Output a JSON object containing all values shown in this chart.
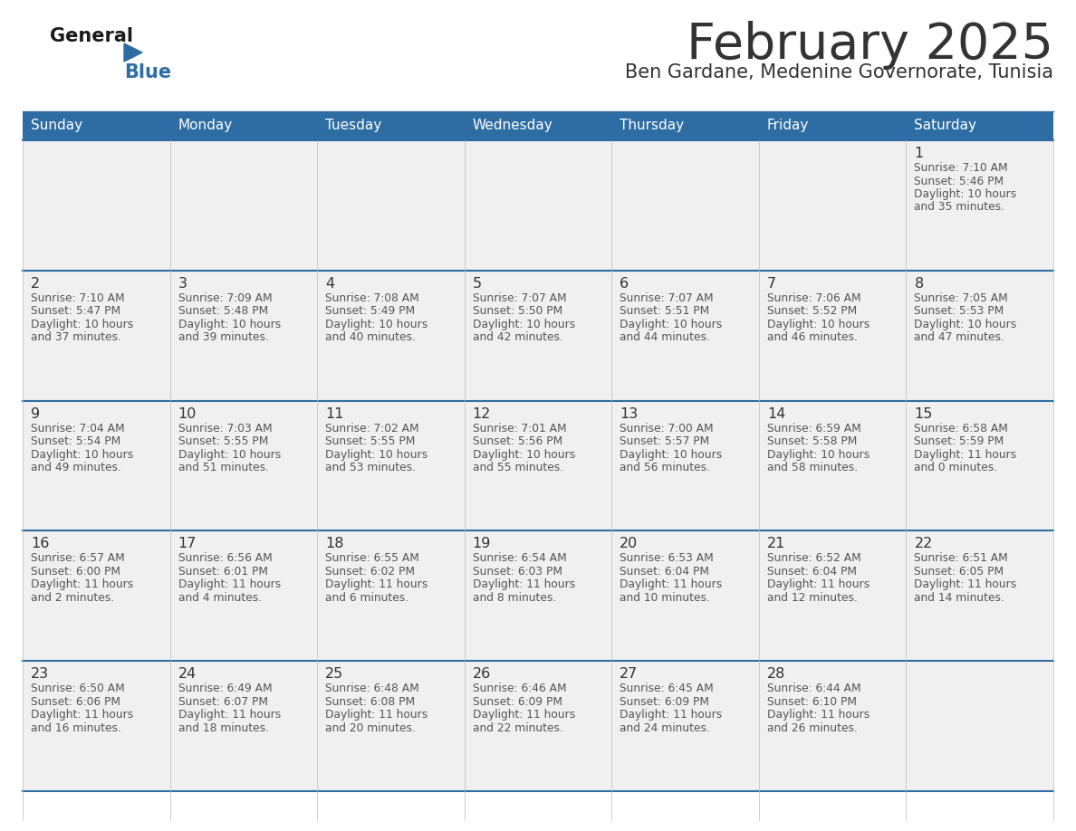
{
  "title": "February 2025",
  "subtitle": "Ben Gardane, Medenine Governorate, Tunisia",
  "header_bg": "#2E6DA4",
  "header_text": "#FFFFFF",
  "cell_bg": "#F0F0F0",
  "grid_line_color": "#2E6DA4",
  "day_headers": [
    "Sunday",
    "Monday",
    "Tuesday",
    "Wednesday",
    "Thursday",
    "Friday",
    "Saturday"
  ],
  "title_color": "#333333",
  "subtitle_color": "#333333",
  "day_number_color": "#333333",
  "info_color": "#555555",
  "calendar": [
    [
      {
        "day": "",
        "sunrise": "",
        "sunset": "",
        "daylight_h": "",
        "daylight_m": ""
      },
      {
        "day": "",
        "sunrise": "",
        "sunset": "",
        "daylight_h": "",
        "daylight_m": ""
      },
      {
        "day": "",
        "sunrise": "",
        "sunset": "",
        "daylight_h": "",
        "daylight_m": ""
      },
      {
        "day": "",
        "sunrise": "",
        "sunset": "",
        "daylight_h": "",
        "daylight_m": ""
      },
      {
        "day": "",
        "sunrise": "",
        "sunset": "",
        "daylight_h": "",
        "daylight_m": ""
      },
      {
        "day": "",
        "sunrise": "",
        "sunset": "",
        "daylight_h": "",
        "daylight_m": ""
      },
      {
        "day": "1",
        "sunrise": "7:10 AM",
        "sunset": "5:46 PM",
        "daylight_h": "10 hours",
        "daylight_m": "and 35 minutes."
      }
    ],
    [
      {
        "day": "2",
        "sunrise": "7:10 AM",
        "sunset": "5:47 PM",
        "daylight_h": "10 hours",
        "daylight_m": "and 37 minutes."
      },
      {
        "day": "3",
        "sunrise": "7:09 AM",
        "sunset": "5:48 PM",
        "daylight_h": "10 hours",
        "daylight_m": "and 39 minutes."
      },
      {
        "day": "4",
        "sunrise": "7:08 AM",
        "sunset": "5:49 PM",
        "daylight_h": "10 hours",
        "daylight_m": "and 40 minutes."
      },
      {
        "day": "5",
        "sunrise": "7:07 AM",
        "sunset": "5:50 PM",
        "daylight_h": "10 hours",
        "daylight_m": "and 42 minutes."
      },
      {
        "day": "6",
        "sunrise": "7:07 AM",
        "sunset": "5:51 PM",
        "daylight_h": "10 hours",
        "daylight_m": "and 44 minutes."
      },
      {
        "day": "7",
        "sunrise": "7:06 AM",
        "sunset": "5:52 PM",
        "daylight_h": "10 hours",
        "daylight_m": "and 46 minutes."
      },
      {
        "day": "8",
        "sunrise": "7:05 AM",
        "sunset": "5:53 PM",
        "daylight_h": "10 hours",
        "daylight_m": "and 47 minutes."
      }
    ],
    [
      {
        "day": "9",
        "sunrise": "7:04 AM",
        "sunset": "5:54 PM",
        "daylight_h": "10 hours",
        "daylight_m": "and 49 minutes."
      },
      {
        "day": "10",
        "sunrise": "7:03 AM",
        "sunset": "5:55 PM",
        "daylight_h": "10 hours",
        "daylight_m": "and 51 minutes."
      },
      {
        "day": "11",
        "sunrise": "7:02 AM",
        "sunset": "5:55 PM",
        "daylight_h": "10 hours",
        "daylight_m": "and 53 minutes."
      },
      {
        "day": "12",
        "sunrise": "7:01 AM",
        "sunset": "5:56 PM",
        "daylight_h": "10 hours",
        "daylight_m": "and 55 minutes."
      },
      {
        "day": "13",
        "sunrise": "7:00 AM",
        "sunset": "5:57 PM",
        "daylight_h": "10 hours",
        "daylight_m": "and 56 minutes."
      },
      {
        "day": "14",
        "sunrise": "6:59 AM",
        "sunset": "5:58 PM",
        "daylight_h": "10 hours",
        "daylight_m": "and 58 minutes."
      },
      {
        "day": "15",
        "sunrise": "6:58 AM",
        "sunset": "5:59 PM",
        "daylight_h": "11 hours",
        "daylight_m": "and 0 minutes."
      }
    ],
    [
      {
        "day": "16",
        "sunrise": "6:57 AM",
        "sunset": "6:00 PM",
        "daylight_h": "11 hours",
        "daylight_m": "and 2 minutes."
      },
      {
        "day": "17",
        "sunrise": "6:56 AM",
        "sunset": "6:01 PM",
        "daylight_h": "11 hours",
        "daylight_m": "and 4 minutes."
      },
      {
        "day": "18",
        "sunrise": "6:55 AM",
        "sunset": "6:02 PM",
        "daylight_h": "11 hours",
        "daylight_m": "and 6 minutes."
      },
      {
        "day": "19",
        "sunrise": "6:54 AM",
        "sunset": "6:03 PM",
        "daylight_h": "11 hours",
        "daylight_m": "and 8 minutes."
      },
      {
        "day": "20",
        "sunrise": "6:53 AM",
        "sunset": "6:04 PM",
        "daylight_h": "11 hours",
        "daylight_m": "and 10 minutes."
      },
      {
        "day": "21",
        "sunrise": "6:52 AM",
        "sunset": "6:04 PM",
        "daylight_h": "11 hours",
        "daylight_m": "and 12 minutes."
      },
      {
        "day": "22",
        "sunrise": "6:51 AM",
        "sunset": "6:05 PM",
        "daylight_h": "11 hours",
        "daylight_m": "and 14 minutes."
      }
    ],
    [
      {
        "day": "23",
        "sunrise": "6:50 AM",
        "sunset": "6:06 PM",
        "daylight_h": "11 hours",
        "daylight_m": "and 16 minutes."
      },
      {
        "day": "24",
        "sunrise": "6:49 AM",
        "sunset": "6:07 PM",
        "daylight_h": "11 hours",
        "daylight_m": "and 18 minutes."
      },
      {
        "day": "25",
        "sunrise": "6:48 AM",
        "sunset": "6:08 PM",
        "daylight_h": "11 hours",
        "daylight_m": "and 20 minutes."
      },
      {
        "day": "26",
        "sunrise": "6:46 AM",
        "sunset": "6:09 PM",
        "daylight_h": "11 hours",
        "daylight_m": "and 22 minutes."
      },
      {
        "day": "27",
        "sunrise": "6:45 AM",
        "sunset": "6:09 PM",
        "daylight_h": "11 hours",
        "daylight_m": "and 24 minutes."
      },
      {
        "day": "28",
        "sunrise": "6:44 AM",
        "sunset": "6:10 PM",
        "daylight_h": "11 hours",
        "daylight_m": "and 26 minutes."
      },
      {
        "day": "",
        "sunrise": "",
        "sunset": "",
        "daylight_h": "",
        "daylight_m": ""
      }
    ]
  ]
}
